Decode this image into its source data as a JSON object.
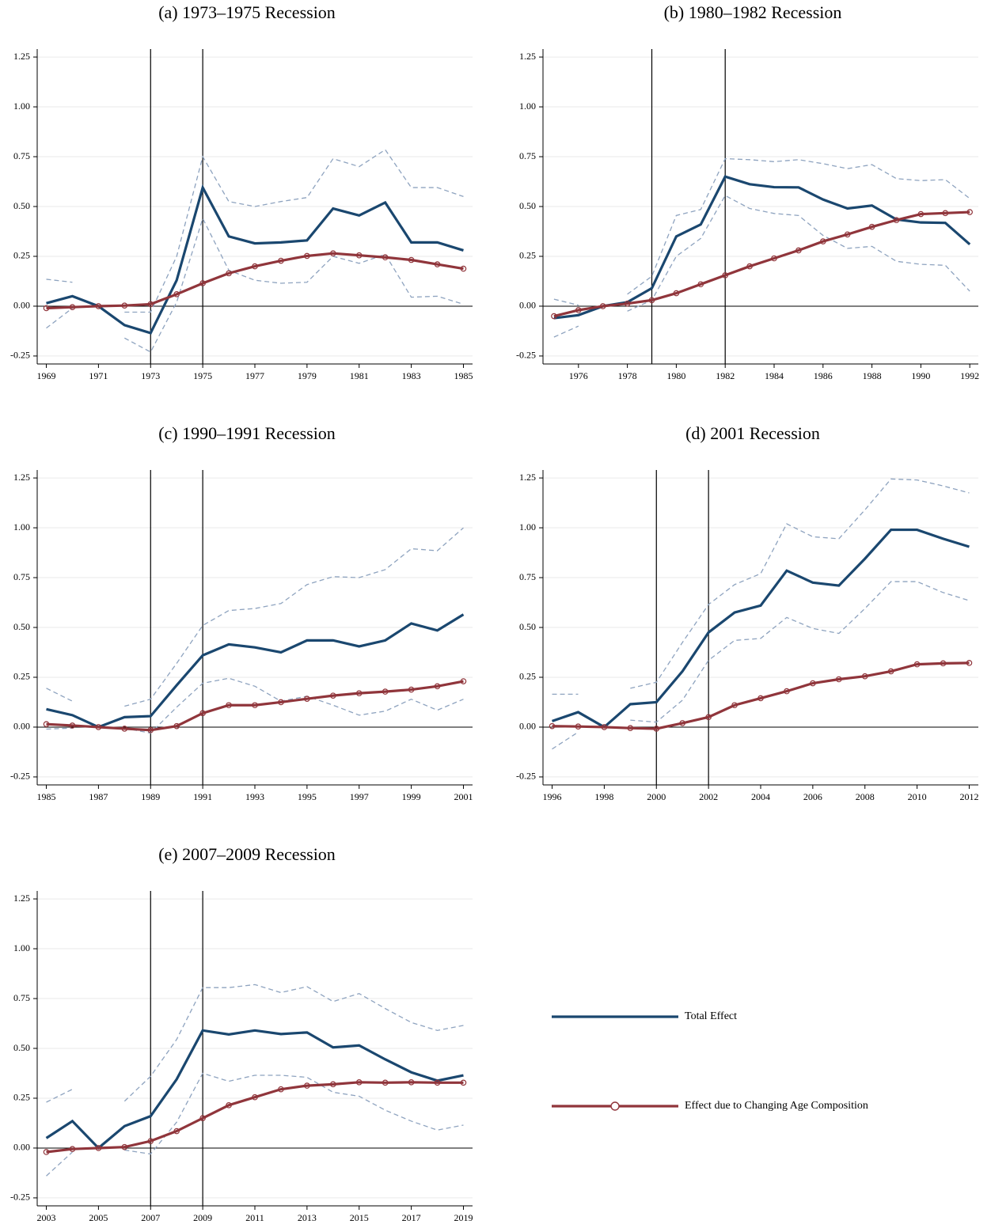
{
  "chart_data": [
    {
      "type": "line",
      "title": "(a) 1973–1975 Recession",
      "x": [
        1969,
        1970,
        1971,
        1972,
        1973,
        1974,
        1975,
        1976,
        1977,
        1978,
        1979,
        1980,
        1981,
        1982,
        1983,
        1984,
        1985
      ],
      "series": [
        {
          "name": "Total Effect",
          "color": "#1a476f",
          "values": [
            0.015,
            0.05,
            0,
            -0.095,
            -0.135,
            0.13,
            0.595,
            0.35,
            0.315,
            0.32,
            0.33,
            0.49,
            0.455,
            0.52,
            0.32,
            0.32,
            0.28
          ]
        },
        {
          "name": "Effect due to Changing Age Composition",
          "color": "#90353b",
          "marker": "circle",
          "values": [
            -0.01,
            -0.005,
            0,
            0.003,
            0.01,
            0.06,
            0.115,
            0.165,
            0.2,
            0.228,
            0.252,
            0.265,
            0.255,
            0.245,
            0.232,
            0.21,
            0.188
          ]
        }
      ],
      "ci": {
        "color": "#8ea3bf",
        "upper": [
          0.135,
          0.12,
          null,
          -0.03,
          -0.03,
          0.25,
          0.75,
          0.525,
          0.5,
          0.525,
          0.545,
          0.74,
          0.7,
          0.785,
          0.595,
          0.595,
          0.55
        ],
        "lower": [
          -0.11,
          -0.01,
          null,
          -0.16,
          -0.23,
          0.02,
          0.44,
          0.18,
          0.13,
          0.115,
          0.12,
          0.25,
          0.215,
          0.26,
          0.045,
          0.05,
          0.01
        ]
      },
      "recession_lines": [
        1973,
        1975
      ],
      "xlim": [
        1968.65,
        1985.35
      ],
      "xticks": [
        1969,
        1971,
        1973,
        1975,
        1977,
        1979,
        1981,
        1983,
        1985
      ],
      "ylim": [
        -0.29,
        1.29
      ],
      "yticks": [
        -0.25,
        {
          "value": 0,
          "label": "0.00"
        },
        0.25,
        {
          "value": 0.5,
          "label": "0.50"
        },
        0.75,
        {
          "value": 1,
          "label": "1.00"
        },
        1.25
      ],
      "grid": true
    },
    {
      "type": "line",
      "title": "(b) 1980–1982 Recession",
      "x": [
        1975,
        1976,
        1977,
        1978,
        1979,
        1980,
        1981,
        1982,
        1983,
        1984,
        1985,
        1986,
        1987,
        1988,
        1989,
        1990,
        1991,
        1992
      ],
      "series": [
        {
          "color": "#1a476f",
          "values": [
            -0.06,
            -0.045,
            0,
            0.02,
            0.09,
            0.35,
            0.41,
            0.65,
            0.612,
            0.597,
            0.596,
            0.535,
            0.49,
            0.505,
            0.435,
            0.42,
            0.418,
            0.31
          ]
        },
        {
          "color": "#90353b",
          "marker": "circle",
          "values": [
            -0.05,
            -0.02,
            0,
            0.013,
            0.03,
            0.065,
            0.11,
            0.155,
            0.2,
            0.24,
            0.28,
            0.325,
            0.36,
            0.398,
            0.432,
            0.462,
            0.467,
            0.472
          ]
        }
      ],
      "ci": {
        "color": "#8ea3bf",
        "upper": [
          0.035,
          0.005,
          null,
          0.06,
          0.15,
          0.455,
          0.485,
          0.74,
          0.735,
          0.725,
          0.735,
          0.715,
          0.69,
          0.71,
          0.64,
          0.63,
          0.635,
          0.54
        ],
        "lower": [
          -0.155,
          -0.1,
          null,
          -0.025,
          0.03,
          0.25,
          0.34,
          0.555,
          0.49,
          0.465,
          0.455,
          0.355,
          0.29,
          0.3,
          0.225,
          0.21,
          0.205,
          0.075
        ]
      },
      "recession_lines": [
        1979,
        1982
      ],
      "xlim": [
        1974.55,
        1992.35
      ],
      "xticks": [
        1976,
        1978,
        1980,
        1982,
        1984,
        1986,
        1988,
        1990,
        1992
      ],
      "ylim": [
        -0.29,
        1.29
      ],
      "yticks": [
        -0.25,
        {
          "value": 0,
          "label": "0.00"
        },
        0.25,
        {
          "value": 0.5,
          "label": "0.50"
        },
        0.75,
        {
          "value": 1,
          "label": "1.00"
        },
        1.25
      ],
      "grid": true
    },
    {
      "type": "line",
      "title": "(c) 1990–1991 Recession",
      "x": [
        1985,
        1986,
        1987,
        1988,
        1989,
        1990,
        1991,
        1992,
        1993,
        1994,
        1995,
        1996,
        1997,
        1998,
        1999,
        2000,
        2001
      ],
      "series": [
        {
          "color": "#1a476f",
          "values": [
            0.09,
            0.06,
            0,
            0.05,
            0.055,
            0.21,
            0.36,
            0.415,
            0.4,
            0.375,
            0.435,
            0.435,
            0.405,
            0.435,
            0.52,
            0.485,
            0.565
          ]
        },
        {
          "color": "#90353b",
          "marker": "circle",
          "values": [
            0.015,
            0.008,
            0,
            -0.008,
            -0.015,
            0.005,
            0.07,
            0.11,
            0.11,
            0.125,
            0.142,
            0.158,
            0.17,
            0.178,
            0.188,
            0.205,
            0.23
          ]
        }
      ],
      "ci": {
        "color": "#8ea3bf",
        "upper": [
          0.195,
          0.13,
          null,
          0.105,
          0.14,
          0.32,
          0.51,
          0.585,
          0.595,
          0.62,
          0.715,
          0.755,
          0.75,
          0.79,
          0.895,
          0.885,
          1.0
        ],
        "lower": [
          -0.01,
          -0.005,
          null,
          -0.005,
          -0.03,
          0.1,
          0.22,
          0.245,
          0.205,
          0.13,
          0.155,
          0.11,
          0.06,
          0.08,
          0.14,
          0.085,
          0.14
        ]
      },
      "recession_lines": [
        1989,
        1991
      ],
      "xlim": [
        1984.65,
        2001.35
      ],
      "xticks": [
        1985,
        1987,
        1989,
        1991,
        1993,
        1995,
        1997,
        1999,
        2001
      ],
      "ylim": [
        -0.29,
        1.29
      ],
      "yticks": [
        -0.25,
        {
          "value": 0,
          "label": "0.00"
        },
        0.25,
        {
          "value": 0.5,
          "label": "0.50"
        },
        0.75,
        {
          "value": 1,
          "label": "1.00"
        },
        1.25
      ],
      "grid": true
    },
    {
      "type": "line",
      "title": "(d) 2001 Recession",
      "x": [
        1996,
        1997,
        1998,
        1999,
        2000,
        2001,
        2002,
        2003,
        2004,
        2005,
        2006,
        2007,
        2008,
        2009,
        2010,
        2011,
        2012
      ],
      "series": [
        {
          "color": "#1a476f",
          "values": [
            0.03,
            0.075,
            0,
            0.115,
            0.125,
            0.28,
            0.475,
            0.575,
            0.61,
            0.785,
            0.725,
            0.71,
            0.845,
            0.99,
            0.99,
            0.945,
            0.905
          ]
        },
        {
          "color": "#90353b",
          "marker": "circle",
          "values": [
            0.005,
            0.003,
            0,
            -0.005,
            -0.008,
            0.02,
            0.05,
            0.11,
            0.145,
            0.18,
            0.22,
            0.24,
            0.255,
            0.28,
            0.315,
            0.32,
            0.322
          ]
        }
      ],
      "ci": {
        "color": "#8ea3bf",
        "upper": [
          0.165,
          0.165,
          null,
          0.195,
          0.225,
          0.425,
          0.615,
          0.715,
          0.77,
          1.02,
          0.955,
          0.945,
          1.09,
          1.245,
          1.24,
          1.21,
          1.175
        ],
        "lower": [
          -0.11,
          -0.025,
          null,
          0.035,
          0.025,
          0.135,
          0.335,
          0.435,
          0.445,
          0.55,
          0.495,
          0.47,
          0.595,
          0.73,
          0.73,
          0.675,
          0.635
        ]
      },
      "recession_lines": [
        2000,
        2002
      ],
      "xlim": [
        1995.65,
        2012.35
      ],
      "xticks": [
        1996,
        1998,
        2000,
        2002,
        2004,
        2006,
        2008,
        2010,
        2012
      ],
      "ylim": [
        -0.29,
        1.29
      ],
      "yticks": [
        -0.25,
        {
          "value": 0,
          "label": "0.00"
        },
        0.25,
        {
          "value": 0.5,
          "label": "0.50"
        },
        0.75,
        {
          "value": 1,
          "label": "1.00"
        },
        1.25
      ],
      "grid": true
    },
    {
      "type": "line",
      "title": "(e) 2007–2009 Recession",
      "x": [
        2003,
        2004,
        2005,
        2006,
        2007,
        2008,
        2009,
        2010,
        2011,
        2012,
        2013,
        2014,
        2015,
        2016,
        2017,
        2018,
        2019
      ],
      "series": [
        {
          "color": "#1a476f",
          "values": [
            0.05,
            0.135,
            0,
            0.11,
            0.16,
            0.345,
            0.59,
            0.57,
            0.59,
            0.572,
            0.58,
            0.505,
            0.515,
            0.445,
            0.38,
            0.338,
            0.365
          ]
        },
        {
          "color": "#90353b",
          "marker": "circle",
          "values": [
            -0.02,
            -0.005,
            0,
            0.005,
            0.035,
            0.085,
            0.15,
            0.215,
            0.255,
            0.295,
            0.313,
            0.32,
            0.33,
            0.328,
            0.33,
            0.328,
            0.328
          ]
        }
      ],
      "ci": {
        "color": "#8ea3bf",
        "upper": [
          0.23,
          0.295,
          null,
          0.235,
          0.36,
          0.545,
          0.805,
          0.805,
          0.82,
          0.78,
          0.81,
          0.735,
          0.775,
          0.7,
          0.63,
          0.59,
          0.615
        ],
        "lower": [
          -0.14,
          -0.02,
          null,
          -0.01,
          -0.03,
          0.13,
          0.375,
          0.335,
          0.365,
          0.365,
          0.355,
          0.28,
          0.26,
          0.19,
          0.135,
          0.09,
          0.115
        ]
      },
      "recession_lines": [
        2007,
        2009
      ],
      "xlim": [
        2002.65,
        2019.35
      ],
      "xticks": [
        2003,
        2005,
        2007,
        2009,
        2011,
        2013,
        2015,
        2017,
        2019
      ],
      "ylim": [
        -0.29,
        1.29
      ],
      "yticks": [
        -0.25,
        {
          "value": 0,
          "label": "0.00"
        },
        0.25,
        {
          "value": 0.5,
          "label": "0.50"
        },
        0.75,
        {
          "value": 1,
          "label": "1.00"
        },
        1.25
      ],
      "grid": true
    }
  ]
}
